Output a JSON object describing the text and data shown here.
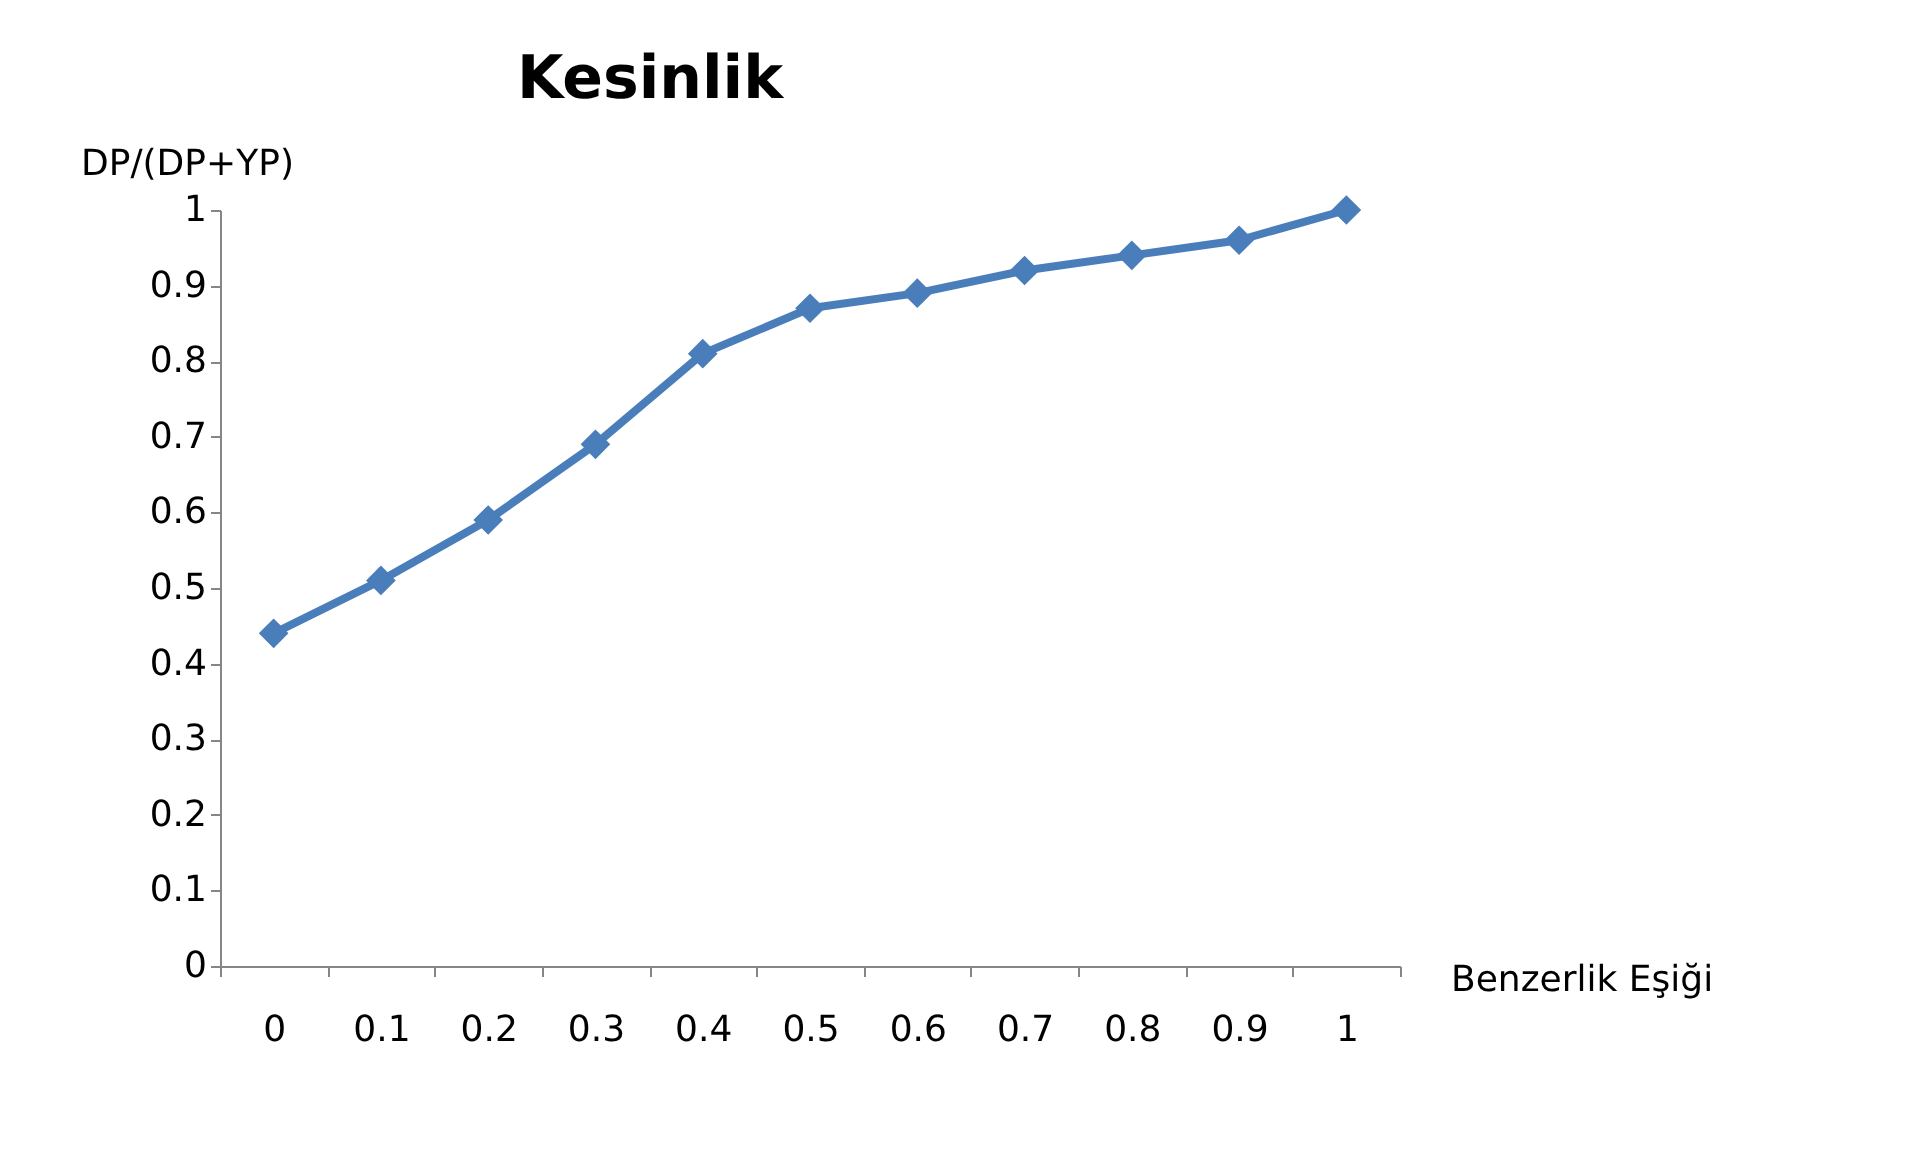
{
  "chart_data": {
    "type": "line",
    "title": "Kesinlik",
    "xlabel": "Benzerlik Eşiği",
    "ylabel": "DP/(DP+YP)",
    "categories": [
      "0",
      "0.1",
      "0.2",
      "0.3",
      "0.4",
      "0.5",
      "0.6",
      "0.7",
      "0.8",
      "0.9",
      "1"
    ],
    "series": [
      {
        "color": "#4a7ebb",
        "values": [
          0.44,
          0.51,
          0.59,
          0.69,
          0.81,
          0.87,
          0.89,
          0.92,
          0.94,
          0.96,
          1.0
        ]
      }
    ],
    "ylim": [
      0,
      1
    ],
    "yticks": [
      0,
      0.1,
      0.2,
      0.3,
      0.4,
      0.5,
      0.6,
      0.7,
      0.8,
      0.9,
      1
    ],
    "grid": false,
    "marker": "diamond",
    "line_style": "solid"
  }
}
